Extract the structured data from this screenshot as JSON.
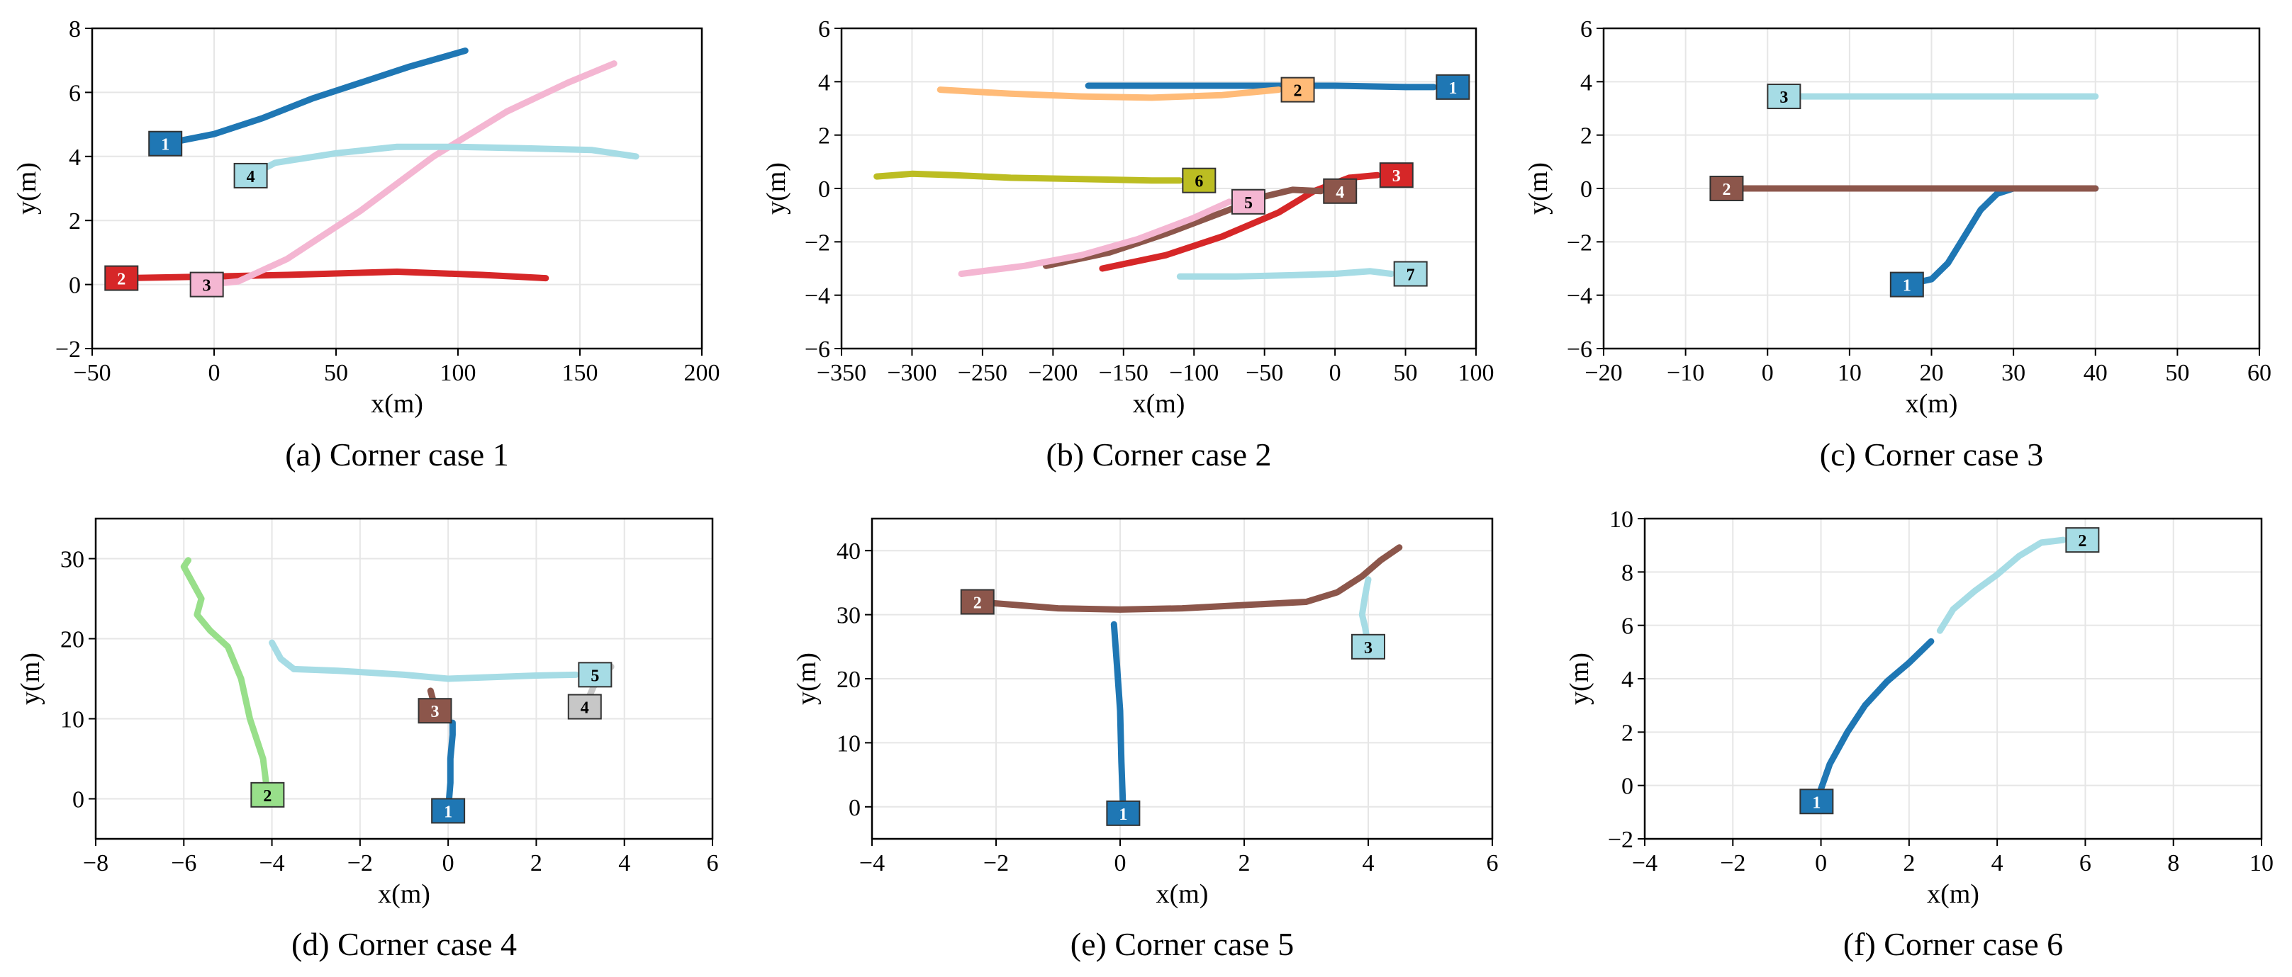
{
  "chart_data": [
    {
      "type": "line",
      "caption": "(a) Corner case 1",
      "xlabel": "x(m)",
      "ylabel": "y(m)",
      "xlim": [
        -50,
        200
      ],
      "ylim": [
        -2,
        8
      ],
      "xticks": [
        -50,
        0,
        50,
        100,
        150,
        200
      ],
      "xtick_labels": [
        "−50",
        "0",
        "50",
        "100",
        "150",
        "200"
      ],
      "yticks": [
        -2,
        0,
        2,
        4,
        6,
        8
      ],
      "ytick_labels": [
        "−2",
        "0",
        "2",
        "4",
        "6",
        "8"
      ],
      "grid": true,
      "series": [
        {
          "name": "1",
          "color": "#1f77b4",
          "x": [
            -20,
            0,
            20,
            40,
            60,
            80,
            103
          ],
          "y": [
            4.4,
            4.7,
            5.2,
            5.8,
            6.3,
            6.8,
            7.3
          ],
          "label_at": "start"
        },
        {
          "name": "2",
          "color": "#d62728",
          "x": [
            -38,
            0,
            30,
            75,
            110,
            136
          ],
          "y": [
            0.2,
            0.25,
            0.3,
            0.4,
            0.3,
            0.2
          ],
          "label_at": "start"
        },
        {
          "name": "3",
          "color": "#f4b6d2",
          "x": [
            -3,
            10,
            30,
            60,
            90,
            120,
            145,
            164
          ],
          "y": [
            0.0,
            0.1,
            0.8,
            2.3,
            4.0,
            5.4,
            6.3,
            6.9
          ],
          "label_at": "start"
        },
        {
          "name": "4",
          "color": "#a6dce5",
          "x": [
            15,
            25,
            50,
            75,
            100,
            130,
            155,
            173
          ],
          "y": [
            3.4,
            3.8,
            4.1,
            4.3,
            4.3,
            4.25,
            4.2,
            4.0
          ],
          "label_at": "start"
        }
      ]
    },
    {
      "type": "line",
      "caption": "(b) Corner case 2",
      "xlabel": "x(m)",
      "ylabel": "y(m)",
      "xlim": [
        -350,
        100
      ],
      "ylim": [
        -6,
        6
      ],
      "xticks": [
        -350,
        -300,
        -250,
        -200,
        -150,
        -100,
        -50,
        0,
        50,
        100
      ],
      "xtick_labels": [
        "−350",
        "−300",
        "−250",
        "−200",
        "−150",
        "−100",
        "−50",
        "0",
        "50",
        "100"
      ],
      "yticks": [
        -6,
        -4,
        -2,
        0,
        2,
        4,
        6
      ],
      "ytick_labels": [
        "−6",
        "−4",
        "−2",
        "0",
        "2",
        "4",
        "6"
      ],
      "grid": true,
      "series": [
        {
          "name": "1",
          "color": "#1f77b4",
          "x": [
            -175,
            -100,
            -50,
            0,
            50,
            70
          ],
          "y": [
            3.85,
            3.85,
            3.85,
            3.85,
            3.8,
            3.8
          ],
          "label_at": "end"
        },
        {
          "name": "2",
          "color": "#ffbb78",
          "x": [
            -280,
            -230,
            -180,
            -130,
            -80,
            -40
          ],
          "y": [
            3.7,
            3.55,
            3.45,
            3.4,
            3.5,
            3.7
          ],
          "label_at": "end"
        },
        {
          "name": "3",
          "color": "#d62728",
          "x": [
            -165,
            -120,
            -80,
            -40,
            -15,
            10,
            30
          ],
          "y": [
            -3.0,
            -2.5,
            -1.8,
            -0.9,
            -0.1,
            0.4,
            0.5
          ],
          "label_at": "end"
        },
        {
          "name": "4",
          "color": "#8c564b",
          "x": [
            -205,
            -160,
            -120,
            -80,
            -50,
            -30,
            -10
          ],
          "y": [
            -2.9,
            -2.4,
            -1.7,
            -0.9,
            -0.3,
            -0.05,
            -0.1
          ],
          "label_at": "end"
        },
        {
          "name": "5",
          "color": "#f4b6d2",
          "x": [
            -265,
            -220,
            -180,
            -140,
            -100,
            -75
          ],
          "y": [
            -3.2,
            -2.9,
            -2.5,
            -1.9,
            -1.1,
            -0.5
          ],
          "label_at": "end"
        },
        {
          "name": "6",
          "color": "#bcbd22",
          "x": [
            -325,
            -300,
            -270,
            -230,
            -180,
            -130,
            -110
          ],
          "y": [
            0.45,
            0.55,
            0.5,
            0.4,
            0.35,
            0.3,
            0.3
          ],
          "label_at": "end"
        },
        {
          "name": "7",
          "color": "#a6dce5",
          "x": [
            -110,
            -70,
            -30,
            0,
            25,
            40
          ],
          "y": [
            -3.3,
            -3.3,
            -3.25,
            -3.2,
            -3.1,
            -3.2
          ],
          "label_at": "end"
        }
      ]
    },
    {
      "type": "line",
      "caption": "(c) Corner case 3",
      "xlabel": "x(m)",
      "ylabel": "y(m)",
      "xlim": [
        -20,
        60
      ],
      "ylim": [
        -6,
        6
      ],
      "xticks": [
        -20,
        -10,
        0,
        10,
        20,
        30,
        40,
        50,
        60
      ],
      "xtick_labels": [
        "−20",
        "−10",
        "0",
        "10",
        "20",
        "30",
        "40",
        "50",
        "60"
      ],
      "yticks": [
        -6,
        -4,
        -2,
        0,
        2,
        4,
        6
      ],
      "ytick_labels": [
        "−6",
        "−4",
        "−2",
        "0",
        "2",
        "4",
        "6"
      ],
      "grid": true,
      "series": [
        {
          "name": "1",
          "color": "#1f77b4",
          "x": [
            17,
            20,
            22,
            24,
            26,
            28,
            30,
            35,
            40
          ],
          "y": [
            -3.6,
            -3.4,
            -2.8,
            -1.8,
            -0.8,
            -0.2,
            0.0,
            0.0,
            0.0
          ],
          "label_at": "start"
        },
        {
          "name": "2",
          "color": "#8c564b",
          "x": [
            -5,
            10,
            25,
            40
          ],
          "y": [
            0.0,
            0.0,
            0.0,
            0.0
          ],
          "label_at": "start"
        },
        {
          "name": "3",
          "color": "#a6dce5",
          "x": [
            2,
            15,
            30,
            40
          ],
          "y": [
            3.45,
            3.45,
            3.45,
            3.45
          ],
          "label_at": "start"
        }
      ]
    },
    {
      "type": "line",
      "caption": "(d) Corner case 4",
      "xlabel": "x(m)",
      "ylabel": "y(m)",
      "xlim": [
        -8,
        6
      ],
      "ylim": [
        -5,
        35
      ],
      "xticks": [
        -8,
        -6,
        -4,
        -2,
        0,
        2,
        4,
        6
      ],
      "xtick_labels": [
        "−8",
        "−6",
        "−4",
        "−2",
        "0",
        "2",
        "4",
        "6"
      ],
      "yticks": [
        0,
        10,
        20,
        30
      ],
      "ytick_labels": [
        "0",
        "10",
        "20",
        "30"
      ],
      "grid": true,
      "series": [
        {
          "name": "1",
          "color": "#1f77b4",
          "x": [
            0.0,
            0.05,
            0.05,
            0.1,
            0.1
          ],
          "y": [
            -1.5,
            2,
            5,
            8,
            9.5
          ],
          "label_at": "start"
        },
        {
          "name": "2",
          "color": "#98df8a",
          "x": [
            -4.1,
            -4.2,
            -4.5,
            -4.7,
            -5.0,
            -5.4,
            -5.7,
            -5.6,
            -5.8,
            -6.0,
            -5.9
          ],
          "y": [
            0.5,
            5,
            10,
            15,
            19,
            21,
            23,
            25,
            27,
            29,
            29.8
          ],
          "label_at": "start"
        },
        {
          "name": "3",
          "color": "#8c564b",
          "x": [
            -0.3,
            -0.35,
            -0.4
          ],
          "y": [
            11,
            12.5,
            13.5
          ],
          "label_at": "start"
        },
        {
          "name": "4",
          "color": "#c7c7c7",
          "x": [
            3.1,
            3.3,
            3.5,
            3.7
          ],
          "y": [
            11.5,
            14,
            15.5,
            16.5
          ],
          "label_at": "start"
        },
        {
          "name": "5",
          "color": "#a6dce5",
          "x": [
            -4.0,
            -3.8,
            -3.5,
            -2.5,
            -1.0,
            0.0,
            1.0,
            2.0,
            2.9
          ],
          "y": [
            19.5,
            17.5,
            16.2,
            16.0,
            15.5,
            15.0,
            15.2,
            15.4,
            15.5
          ],
          "label_at": "end"
        }
      ]
    },
    {
      "type": "line",
      "caption": "(e) Corner case 5",
      "xlabel": "x(m)",
      "ylabel": "y(m)",
      "xlim": [
        -4,
        6
      ],
      "ylim": [
        -5,
        45
      ],
      "xticks": [
        -4,
        -2,
        0,
        2,
        4,
        6
      ],
      "xtick_labels": [
        "−4",
        "−2",
        "0",
        "2",
        "4",
        "6"
      ],
      "yticks": [
        0,
        10,
        20,
        30,
        40
      ],
      "ytick_labels": [
        "0",
        "10",
        "20",
        "30",
        "40"
      ],
      "grid": true,
      "series": [
        {
          "name": "1",
          "color": "#1f77b4",
          "x": [
            0.05,
            0.02,
            0.0,
            -0.05,
            -0.1
          ],
          "y": [
            -1,
            7,
            15,
            22,
            28.5
          ],
          "label_at": "start"
        },
        {
          "name": "2",
          "color": "#8c564b",
          "x": [
            -2.3,
            -1,
            0,
            1,
            2,
            3,
            3.5,
            3.9,
            4.2,
            4.5
          ],
          "y": [
            32,
            31,
            30.8,
            31,
            31.5,
            32,
            33.5,
            36,
            38.5,
            40.5
          ],
          "label_at": "start"
        },
        {
          "name": "3",
          "color": "#a6dce5",
          "x": [
            4.0,
            3.95,
            3.9,
            3.95,
            4.0
          ],
          "y": [
            25,
            28,
            30,
            33,
            35.5
          ],
          "label_at": "start"
        }
      ]
    },
    {
      "type": "line",
      "caption": "(f) Corner case 6",
      "xlabel": "x(m)",
      "ylabel": "y(m)",
      "xlim": [
        -4,
        10
      ],
      "ylim": [
        -2,
        10
      ],
      "xticks": [
        -4,
        -2,
        0,
        2,
        4,
        6,
        8,
        10
      ],
      "xtick_labels": [
        "−4",
        "−2",
        "0",
        "2",
        "4",
        "6",
        "8",
        "10"
      ],
      "yticks": [
        -2,
        0,
        2,
        4,
        6,
        8,
        10
      ],
      "ytick_labels": [
        "−2",
        "0",
        "2",
        "4",
        "6",
        "8",
        "10"
      ],
      "grid": true,
      "series": [
        {
          "name": "1",
          "color": "#1f77b4",
          "x": [
            -0.1,
            0.2,
            0.6,
            1.0,
            1.5,
            2.0,
            2.5
          ],
          "y": [
            -0.6,
            0.8,
            2.0,
            3.0,
            3.9,
            4.6,
            5.4
          ],
          "label_at": "start"
        },
        {
          "name": "2",
          "color": "#a6dce5",
          "x": [
            2.7,
            3.0,
            3.5,
            4.0,
            4.5,
            5.0,
            5.5
          ],
          "y": [
            5.8,
            6.6,
            7.3,
            7.9,
            8.6,
            9.1,
            9.2
          ],
          "label_at": "end"
        }
      ]
    }
  ]
}
